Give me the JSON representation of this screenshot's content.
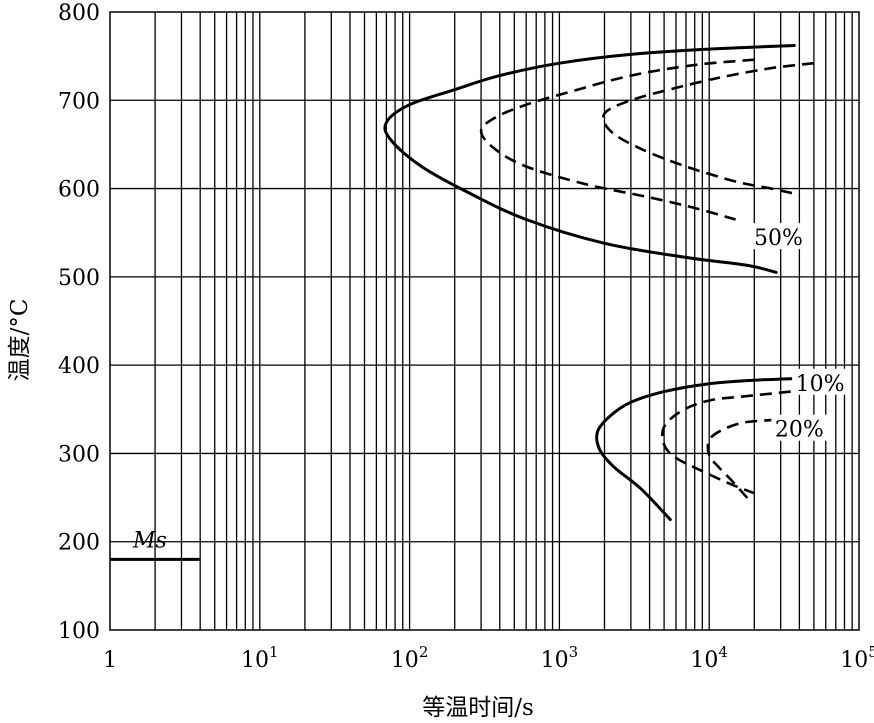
{
  "chart_data": {
    "type": "line",
    "xlabel": "等温时间/s",
    "ylabel": "温度/°C",
    "xscale": "log",
    "xlim": [
      1,
      100000
    ],
    "ylim": [
      100,
      800
    ],
    "grid": true,
    "x_ticks": [
      {
        "value": 1,
        "base": "1",
        "exp": ""
      },
      {
        "value": 10,
        "base": "10",
        "exp": "1"
      },
      {
        "value": 100,
        "base": "10",
        "exp": "2"
      },
      {
        "value": 1000,
        "base": "10",
        "exp": "3"
      },
      {
        "value": 10000,
        "base": "10",
        "exp": "4"
      },
      {
        "value": 100000,
        "base": "10",
        "exp": "5"
      }
    ],
    "y_ticks": [
      100,
      200,
      300,
      400,
      500,
      600,
      700,
      800
    ],
    "ms": {
      "label": "Ms",
      "temperature": 180,
      "x_end": 4
    },
    "series": [
      {
        "style": "solid",
        "points": [
          [
            37000,
            762
          ],
          [
            10000,
            758
          ],
          [
            3000,
            752
          ],
          [
            1000,
            742
          ],
          [
            400,
            728
          ],
          [
            200,
            712
          ],
          [
            100,
            695
          ],
          [
            70,
            675
          ],
          [
            75,
            655
          ],
          [
            120,
            625
          ],
          [
            250,
            595
          ],
          [
            600,
            565
          ],
          [
            2000,
            538
          ],
          [
            7000,
            522
          ],
          [
            18000,
            513
          ],
          [
            28000,
            505
          ]
        ]
      },
      {
        "style": "dashed",
        "points": [
          [
            20000,
            746
          ],
          [
            8000,
            740
          ],
          [
            3000,
            728
          ],
          [
            1200,
            710
          ],
          [
            600,
            695
          ],
          [
            370,
            680
          ],
          [
            300,
            665
          ],
          [
            370,
            645
          ],
          [
            600,
            625
          ],
          [
            1500,
            605
          ],
          [
            4000,
            590
          ],
          [
            8000,
            578
          ],
          [
            15000,
            565
          ]
        ]
      },
      {
        "style": "dashed",
        "points": [
          [
            50000,
            742
          ],
          [
            25000,
            736
          ],
          [
            12000,
            726
          ],
          [
            6000,
            714
          ],
          [
            3000,
            700
          ],
          [
            2000,
            685
          ],
          [
            2200,
            665
          ],
          [
            3500,
            645
          ],
          [
            7000,
            625
          ],
          [
            15000,
            608
          ],
          [
            26000,
            600
          ],
          [
            40000,
            593
          ]
        ]
      },
      {
        "style": "solid",
        "points": [
          [
            40000,
            385
          ],
          [
            20000,
            383
          ],
          [
            10000,
            379
          ],
          [
            5000,
            370
          ],
          [
            3000,
            358
          ],
          [
            2200,
            343
          ],
          [
            1800,
            325
          ],
          [
            1850,
            305
          ],
          [
            2300,
            285
          ],
          [
            3500,
            260
          ],
          [
            5500,
            225
          ]
        ]
      },
      {
        "style": "dashed",
        "points": [
          [
            35000,
            370
          ],
          [
            18000,
            365
          ],
          [
            10000,
            360
          ],
          [
            6500,
            348
          ],
          [
            5000,
            330
          ],
          [
            5000,
            310
          ],
          [
            6000,
            295
          ],
          [
            9000,
            280
          ],
          [
            14000,
            265
          ],
          [
            20000,
            255
          ]
        ]
      },
      {
        "style": "dashed",
        "points": [
          [
            28000,
            338
          ],
          [
            17000,
            335
          ],
          [
            12000,
            326
          ],
          [
            10000,
            315
          ],
          [
            10000,
            298
          ],
          [
            11500,
            285
          ],
          [
            14000,
            270
          ],
          [
            19000,
            245
          ]
        ]
      }
    ],
    "annotations": [
      {
        "text": "50%",
        "x": 29000,
        "y": 545
      },
      {
        "text": "10%",
        "x": 55000,
        "y": 380
      },
      {
        "text": "20%",
        "x": 40000,
        "y": 328
      }
    ]
  }
}
